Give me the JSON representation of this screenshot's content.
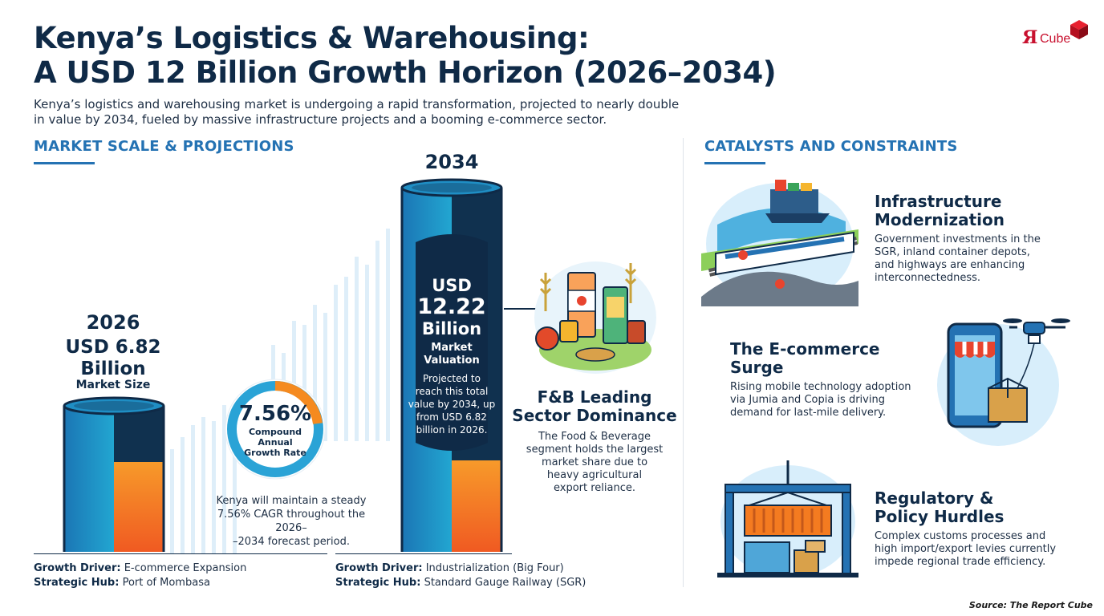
{
  "header": {
    "title_line1": "Kenya’s Logistics & Warehousing:",
    "title_line2": "A USD 12 Billion Growth Horizon (2026–2034)",
    "intro_line1": "Kenya’s logistics and warehousing market is undergoing a rapid transformation, projected to nearly double",
    "intro_line2": "in value by 2034, fueled by massive infrastructure projects and a booming e-commerce sector."
  },
  "logo": {
    "r": "Я",
    "text": "Cube"
  },
  "market": {
    "section_title": "MARKET SCALE & PROJECTIONS",
    "y2026": {
      "year": "2026",
      "value_line1": "USD 6.82",
      "value_line2": "Billion",
      "label": "Market Size"
    },
    "y2034": {
      "year": "2034",
      "value_line1": "USD",
      "value_line2": "12.22",
      "value_line3": "Billion",
      "label_line1": "Market",
      "label_line2": "Valuation",
      "desc_line1": "Projected to",
      "desc_line2": "reach this total",
      "desc_line3": "value by 2034, up",
      "desc_line4": "from USD 6.82",
      "desc_line5": "billion in 2026."
    },
    "cagr": {
      "value": "7.56%",
      "label_line1": "Compound",
      "label_line2": "Annual",
      "label_line3": "Growth Rate",
      "text_line1": "Kenya will maintain a steady",
      "text_line2": "7.56% CAGR throughout the 2026–",
      "text_line3": "–2034 forecast period."
    },
    "left_driver": {
      "driver_label": "Growth Driver:",
      "driver_value": " E-commerce Expansion",
      "hub_label": "Strategic Hub:",
      "hub_value": " Port of Mombasa"
    },
    "right_driver": {
      "driver_label": "Growth Driver:",
      "driver_value": " Industrialization (Big Four)",
      "hub_label": "Strategic Hub:",
      "hub_value": " Standard Gauge Railway (SGR)"
    },
    "fb": {
      "title_line1": "F&B Leading",
      "title_line2": "Sector Dominance",
      "text_line1": "The Food & Beverage",
      "text_line2": "segment holds the largest",
      "text_line3": "market share due to",
      "text_line4": "heavy agricultural",
      "text_line5": "export reliance."
    }
  },
  "catalysts": {
    "section_title": "CATALYSTS AND CONSTRAINTS",
    "items": [
      {
        "title_line1": "Infrastructure",
        "title_line2": "Modernization",
        "text_line1": "Government investments in the",
        "text_line2": "SGR, inland container depots,",
        "text_line3": "and highways are enhancing",
        "text_line4": "interconnectedness."
      },
      {
        "title_line1": "The E-commerce",
        "title_line2": "Surge",
        "text_line1": "Rising mobile technology adoption",
        "text_line2": "via Jumia and Copia is driving",
        "text_line3": "demand for last-mile delivery."
      },
      {
        "title_line1": "Regulatory &",
        "title_line2": "Policy Hurdles",
        "text_line1": "Complex customs processes and",
        "text_line2": "high import/export levies currently",
        "text_line3": "impede regional trade efficiency."
      }
    ]
  },
  "footer": {
    "source": "Source: The Report Cube"
  },
  "colors": {
    "navy": "#0f2a47",
    "accent_blue": "#2472b3",
    "orange": "#f47b20",
    "teal": "#1fa0c8"
  },
  "icons": [
    "cube-icon",
    "train-ship-icon",
    "food-products-icon",
    "phone-drone-icon",
    "port-crane-icon"
  ]
}
